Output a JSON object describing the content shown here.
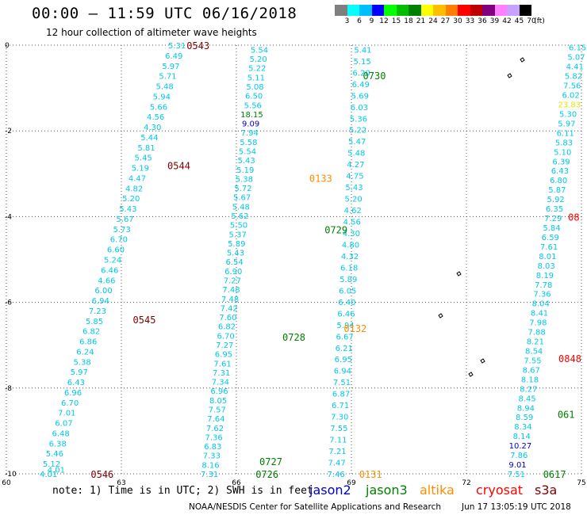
{
  "title": "00:00 – 11:59 UTC 06/16/2018",
  "subtitle": "12 hour collection of altimeter wave heights",
  "colorbar": {
    "unit_label": "(ft)",
    "labels": [
      "3",
      "6",
      "9",
      "12",
      "15",
      "18",
      "21",
      "24",
      "27",
      "30",
      "33",
      "36",
      "39",
      "42",
      "45",
      "70"
    ],
    "colors": [
      "#7f7f7f",
      "#00ffff",
      "#00bfff",
      "#0000ff",
      "#00ff00",
      "#00bf00",
      "#008000",
      "#ffff00",
      "#ffbf00",
      "#ff8000",
      "#ff0000",
      "#bf0000",
      "#800080",
      "#ff80ff",
      "#c8a0ff",
      "#000000"
    ]
  },
  "note": "note: 1) Time is in UTC; 2) SWH is in feet",
  "legend": [
    {
      "label": "jason2",
      "color": "#0000cc"
    },
    {
      "label": "jason3",
      "color": "#008000"
    },
    {
      "label": "altika",
      "color": "#ff8c00"
    },
    {
      "label": "cryosat",
      "color": "#ff0000"
    },
    {
      "label": "s3a",
      "color": "#800000"
    }
  ],
  "credit": "NOAA/NESDIS Center for Satellite Applications and Research",
  "timestamp": "Jun 17 13:05:19 UTC 2018",
  "chart_data": {
    "type": "scatter",
    "xlim": [
      60,
      75
    ],
    "ylim": [
      -10,
      0
    ],
    "x_ticks": [
      "60",
      "63",
      "66",
      "69",
      "72",
      "75"
    ],
    "y_ticks": [
      "0",
      "-2",
      "-4",
      "-6",
      "-8",
      "-10"
    ],
    "grid": true,
    "series": [
      {
        "name": "jason2",
        "color": "#0000cc",
        "points": [
          {
            "x": 61.3,
            "y": -9.9,
            "v": "4.01"
          }
        ]
      },
      {
        "name": "jason3",
        "color": "#008000"
      },
      {
        "name": "altika",
        "color": "#ff8c00"
      },
      {
        "name": "cryosat",
        "color": "#ff0000"
      },
      {
        "name": "s3a",
        "color": "#800000"
      }
    ],
    "tracks": [
      {
        "color": "#00c8e8",
        "x0": 64.45,
        "y0": 0.0,
        "x1": 61.1,
        "y1": -10.0,
        "values": [
          "5.31",
          "6.49",
          "5.97",
          "5.71",
          "5.48",
          "5.94",
          "5.66",
          "4.56",
          "4.30",
          "5.44",
          "5.81",
          "5.45",
          "5.19",
          "4.47",
          "4.82",
          "5.20",
          "5.43",
          "5.67",
          "5.73",
          "6.70",
          "6.60",
          "5.24",
          "6.46",
          "4.66",
          "6.00",
          "6.94",
          "7.23",
          "5.85",
          "6.82",
          "6.86",
          "6.24",
          "5.38",
          "5.97",
          "6.43",
          "6.96",
          "6.70",
          "7.01",
          "6.07",
          "6.48",
          "6.38",
          "5.46",
          "5.12",
          "4.01"
        ]
      },
      {
        "color": "#00c8e8",
        "x0": 66.6,
        "y0": -0.1,
        "x1": 65.3,
        "y1": -10.0,
        "values": [
          "5.54",
          "5.20",
          "5.22",
          "5.11",
          "5.08",
          "6.50",
          "5.56",
          "18.15",
          "9.09",
          "7.94",
          "5.58",
          "5.54",
          "5.43",
          "5.19",
          "5.38",
          "5.72",
          "5.67",
          "5.48",
          "5.62",
          "5.50",
          "5.37",
          "5.89",
          "5.43",
          "6.54",
          "6.90",
          "7.27",
          "7.48",
          "7.48",
          "7.42",
          "7.60",
          "6.82",
          "6.70",
          "7.27",
          "6.95",
          "7.61",
          "7.31",
          "7.34",
          "6.96",
          "8.05",
          "7.57",
          "7.64",
          "7.62",
          "7.36",
          "6.83",
          "7.33",
          "8.16",
          "7.31"
        ]
      },
      {
        "color": "#00c8e8",
        "x0": 69.3,
        "y0": -0.1,
        "x1": 68.6,
        "y1": -10.0,
        "values": [
          "5.41",
          "5.15",
          "6.20",
          "6.49",
          "5.69",
          "6.03",
          "5.36",
          "5.22",
          "5.47",
          "5.48",
          "4.27",
          "4.75",
          "5.43",
          "5.20",
          "4.62",
          "4.56",
          "4.30",
          "4.80",
          "4.32",
          "6.18",
          "5.89",
          "6.05",
          "6.40",
          "6.46",
          "5.94",
          "6.67",
          "6.21",
          "6.95",
          "6.94",
          "7.51",
          "6.87",
          "6.71",
          "7.30",
          "7.55",
          "7.11",
          "7.21",
          "7.47",
          "7.46"
        ]
      },
      {
        "color": "#00c8e8",
        "x0": 74.9,
        "y0": -0.05,
        "x1": 73.3,
        "y1": -10.0,
        "values": [
          "6.15",
          "5.07",
          "4.41",
          "5.82",
          "7.56",
          "6.02",
          "23.83",
          "5.30",
          "5.97",
          "6.11",
          "5.83",
          "5.10",
          "6.39",
          "6.43",
          "6.80",
          "5.87",
          "5.92",
          "6.35",
          "7.29",
          "5.84",
          "6.59",
          "7.61",
          "8.01",
          "8.03",
          "8.19",
          "7.78",
          "7.36",
          "8.04",
          "8.41",
          "7.98",
          "7.88",
          "8.21",
          "8.54",
          "7.55",
          "8.67",
          "8.18",
          "8.27",
          "8.45",
          "8.94",
          "8.59",
          "8.34",
          "8.14",
          "10.27",
          "7.86",
          "9.01",
          "7.51"
        ]
      }
    ],
    "time_labels": [
      {
        "text": "0543",
        "color": "#800000",
        "x": 65.0,
        "y": 0.0
      },
      {
        "text": "0544",
        "color": "#800000",
        "x": 64.5,
        "y": -2.8
      },
      {
        "text": "0545",
        "color": "#800000",
        "x": 63.6,
        "y": -6.4
      },
      {
        "text": "0546",
        "color": "#800000",
        "x": 62.5,
        "y": -10.0
      },
      {
        "text": "0730",
        "color": "#008000",
        "x": 69.6,
        "y": -0.7
      },
      {
        "text": "0729",
        "color": "#008000",
        "x": 68.6,
        "y": -4.3
      },
      {
        "text": "0728",
        "color": "#008000",
        "x": 67.5,
        "y": -6.8
      },
      {
        "text": "0727",
        "color": "#008000",
        "x": 66.9,
        "y": -9.7
      },
      {
        "text": "0726",
        "color": "#008000",
        "x": 66.8,
        "y": -10.0
      },
      {
        "text": "0133",
        "color": "#ff8c00",
        "x": 68.2,
        "y": -3.1
      },
      {
        "text": "0132",
        "color": "#ff8c00",
        "x": 69.1,
        "y": -6.6
      },
      {
        "text": "0131",
        "color": "#ff8c00",
        "x": 69.5,
        "y": -10.0
      },
      {
        "text": "0848",
        "color": "#ff0000",
        "x": 74.7,
        "y": -7.3
      },
      {
        "text": "08",
        "color": "#ff0000",
        "x": 74.8,
        "y": -4.0
      },
      {
        "text": "0617",
        "color": "#008000",
        "x": 74.3,
        "y": -10.0
      },
      {
        "text": "061",
        "color": "#008000",
        "x": 74.6,
        "y": -8.6
      }
    ]
  }
}
